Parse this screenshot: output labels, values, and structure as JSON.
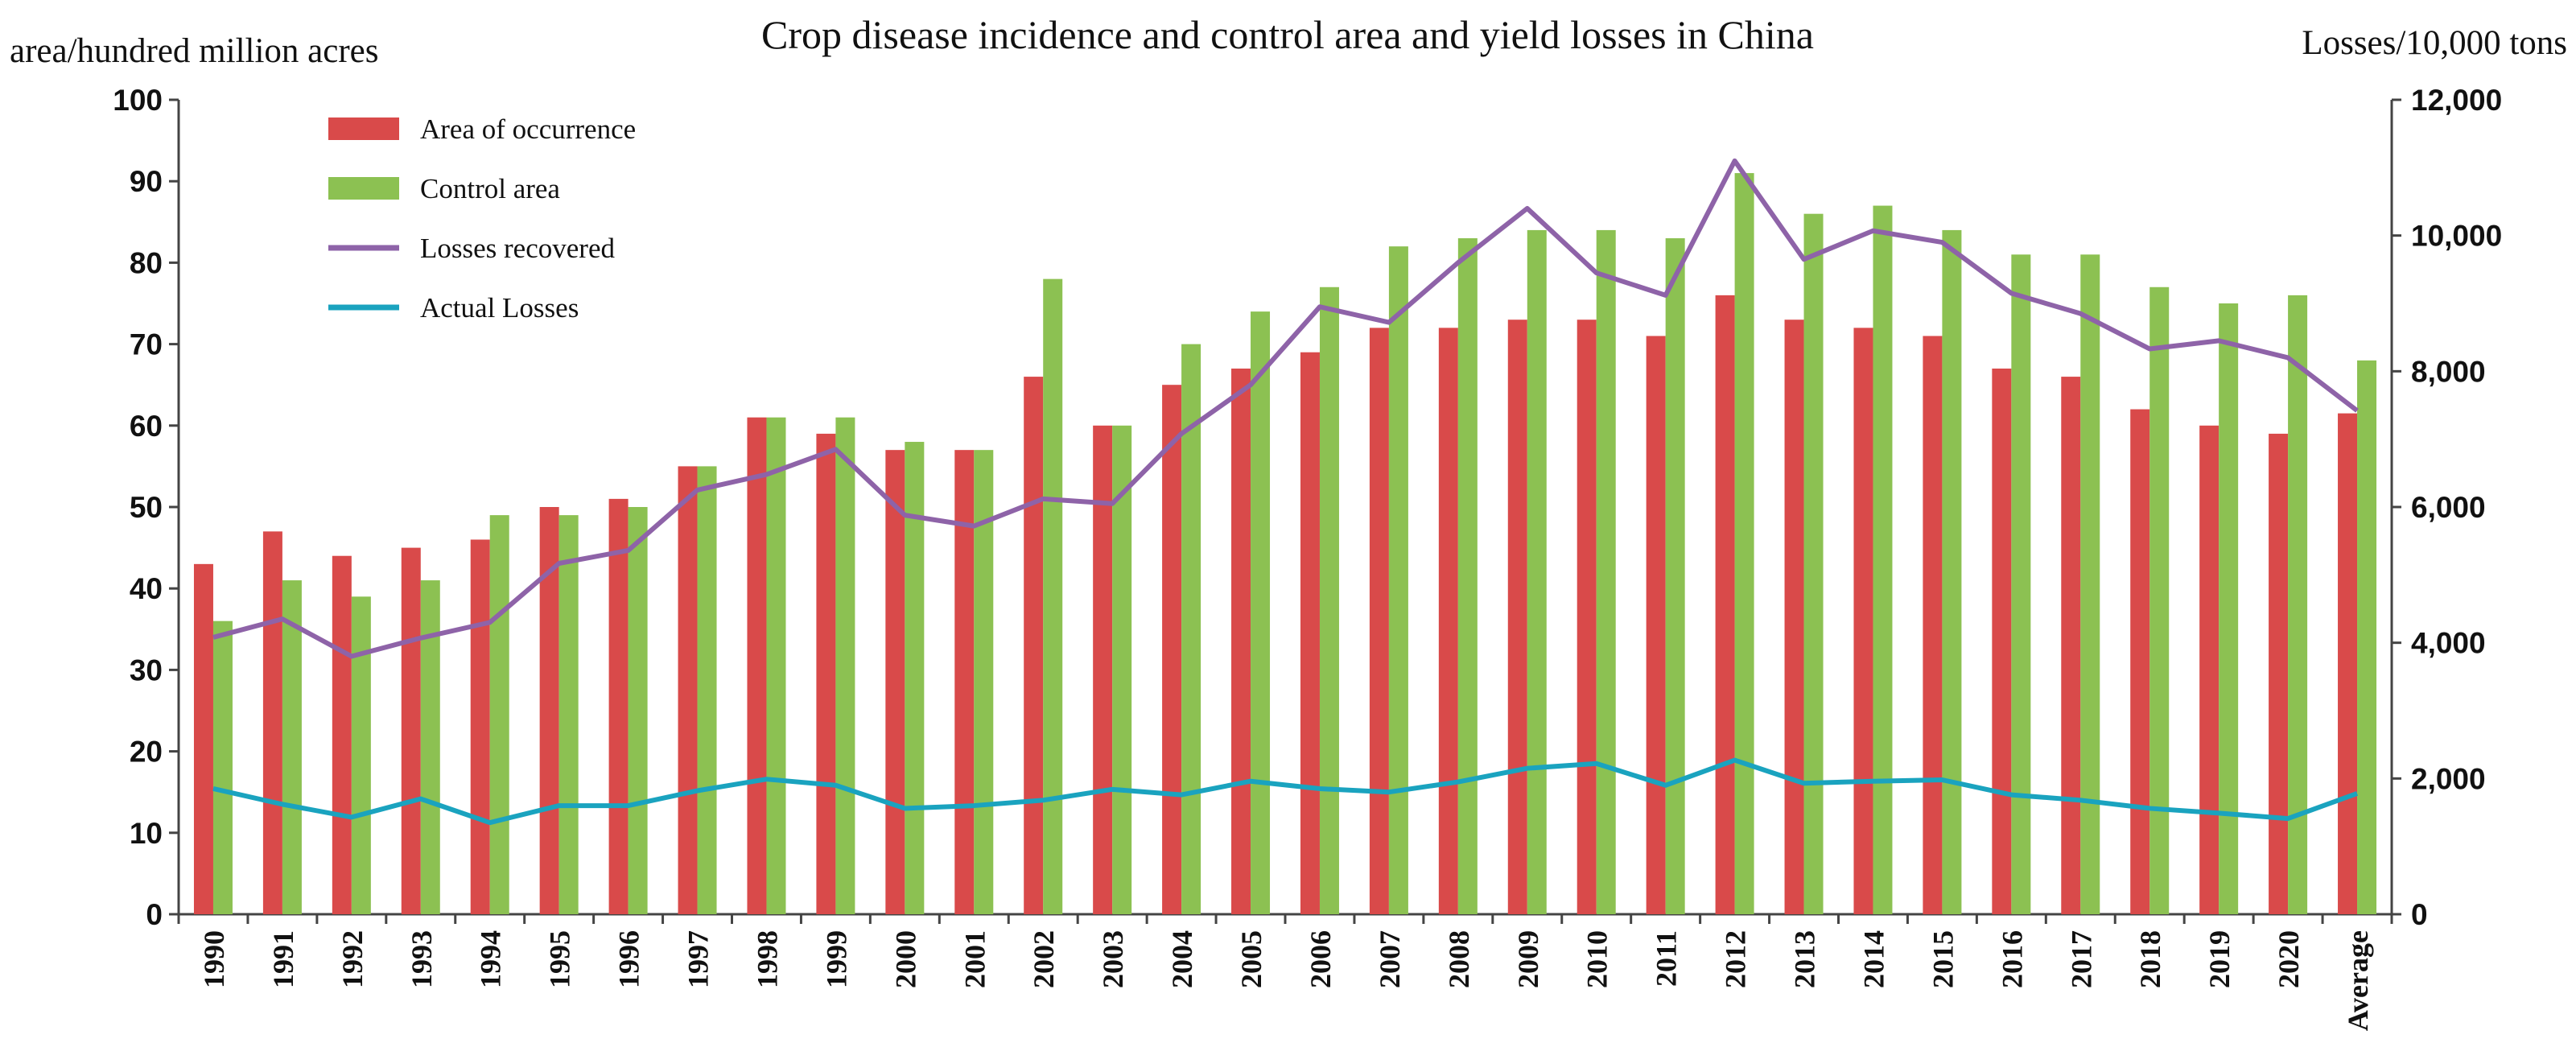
{
  "chart_data": {
    "type": "bar",
    "title": "Crop disease incidence and control area and yield losses in China",
    "ylabel_left": "area/hundred million acres",
    "ylabel_right": "Losses/10,000  tons",
    "xlabel": "",
    "categories": [
      "1990",
      "1991",
      "1992",
      "1993",
      "1994",
      "1995",
      "1996",
      "1997",
      "1998",
      "1999",
      "2000",
      "2001",
      "2002",
      "2003",
      "2004",
      "2005",
      "2006",
      "2007",
      "2008",
      "2009",
      "2010",
      "2011",
      "2012",
      "2013",
      "2014",
      "2015",
      "2016",
      "2017",
      "2018",
      "2019",
      "2020",
      "Average"
    ],
    "ylim_left": [
      0,
      100
    ],
    "yticks_left": [
      "0",
      "10",
      "20",
      "30",
      "40",
      "50",
      "60",
      "70",
      "80",
      "90",
      "100"
    ],
    "ylim_right": [
      0,
      12000
    ],
    "yticks_right": [
      "0",
      "2,000",
      "4,000",
      "6,000",
      "8,000",
      "10,000",
      "12,000"
    ],
    "grid": false,
    "legend_position": "top-left",
    "series": [
      {
        "name": "Area of occurrence",
        "kind": "bar",
        "axis": "left",
        "color": "#d94a4a",
        "values": [
          43,
          47,
          44,
          45,
          46,
          50,
          51,
          55,
          61,
          59,
          57,
          57,
          66,
          60,
          65,
          67,
          69,
          72,
          72,
          73,
          73,
          71,
          76,
          73,
          72,
          71,
          67,
          66,
          62,
          60,
          59,
          61.5
        ]
      },
      {
        "name": "Control area",
        "kind": "bar",
        "axis": "left",
        "color": "#8cc152",
        "values": [
          36,
          41,
          39,
          41,
          49,
          49,
          50,
          55,
          61,
          61,
          58,
          57,
          78,
          60,
          70,
          74,
          77,
          82,
          83,
          84,
          84,
          83,
          91,
          86,
          87,
          84,
          81,
          81,
          77,
          75,
          76,
          68
        ]
      },
      {
        "name": "Losses recovered",
        "kind": "line",
        "axis": "right",
        "color": "#8e63a8",
        "values": [
          4080,
          4350,
          3800,
          4070,
          4300,
          5170,
          5360,
          6250,
          6480,
          6850,
          5880,
          5720,
          6120,
          6050,
          7080,
          7800,
          8950,
          8720,
          9600,
          10400,
          9450,
          9120,
          11100,
          9650,
          10070,
          9900,
          9150,
          8850,
          8330,
          8450,
          8200,
          7420
        ]
      },
      {
        "name": "Actual Losses",
        "kind": "line",
        "axis": "right",
        "color": "#1aa3bf",
        "values": [
          1850,
          1620,
          1430,
          1700,
          1350,
          1600,
          1600,
          1820,
          1990,
          1900,
          1560,
          1600,
          1680,
          1840,
          1760,
          1960,
          1850,
          1800,
          1950,
          2150,
          2220,
          1900,
          2270,
          1930,
          1960,
          1980,
          1760,
          1680,
          1560,
          1490,
          1410,
          1780
        ]
      }
    ]
  }
}
